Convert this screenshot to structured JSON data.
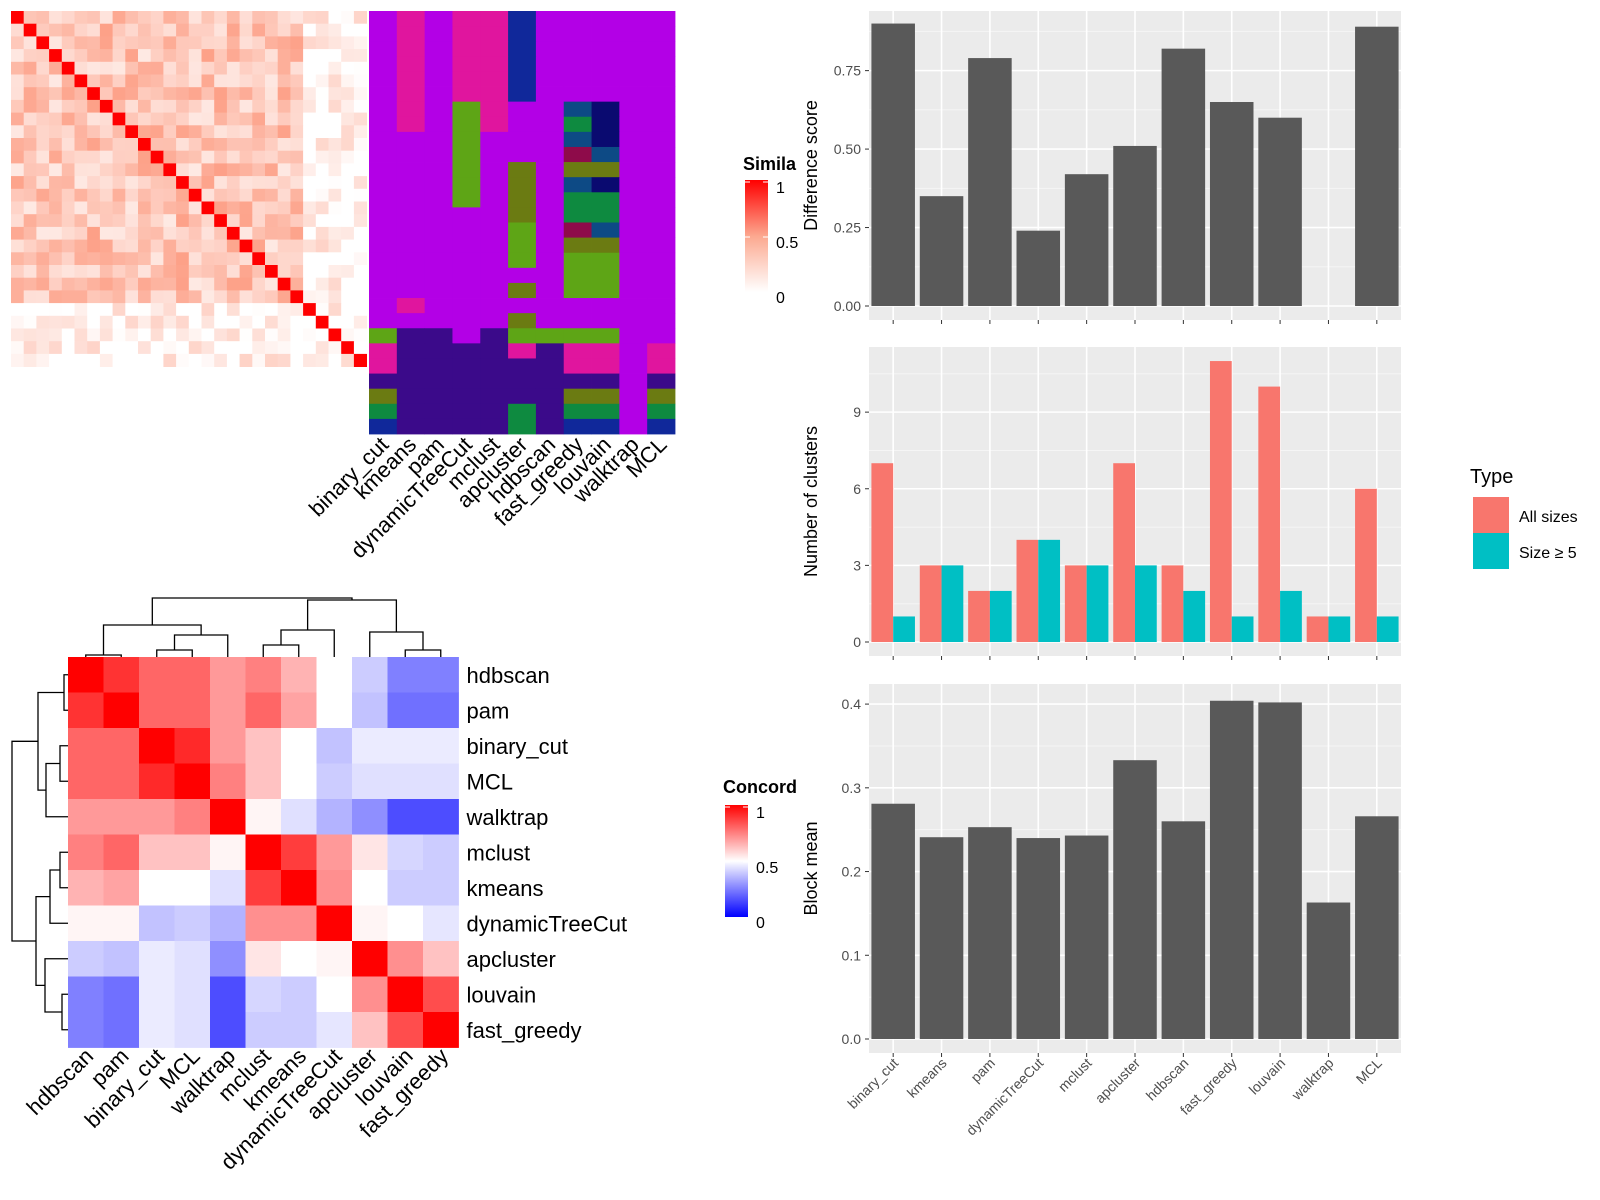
{
  "methods": [
    "binary_cut",
    "kmeans",
    "pam",
    "dynamicTreeCut",
    "mclust",
    "apcluster",
    "hdbscan",
    "fast_greedy",
    "louvain",
    "walktrap",
    "MCL"
  ],
  "similarity_legend": {
    "title": "Simila",
    "ticks": [
      "1",
      "0.5",
      "0"
    ]
  },
  "concordance_legend": {
    "title": "Concord",
    "ticks": [
      "1",
      "0.5",
      "0"
    ]
  },
  "concordance_order": [
    "hdbscan",
    "pam",
    "binary_cut",
    "MCL",
    "walktrap",
    "mclust",
    "kmeans",
    "dynamicTreeCut",
    "apcluster",
    "louvain",
    "fast_greedy"
  ],
  "type_legend": {
    "title": "Type",
    "items": [
      {
        "label": "All sizes",
        "color": "#F8766D"
      },
      {
        "label": "Size ≥ 5",
        "color": "#00BFC4"
      }
    ]
  },
  "colors": {
    "panel_bg": "#EBEBEB",
    "bar": "#595959",
    "red": "#FF0000",
    "blue": "#0000FF",
    "purple": "#B300E6",
    "magenta": "#E0159E",
    "dark_indigo": "#3B0A8A"
  },
  "chart_data": [
    {
      "type": "bar",
      "title": "",
      "xlabel": "",
      "ylabel": "Difference score",
      "categories": [
        "binary_cut",
        "kmeans",
        "pam",
        "dynamicTreeCut",
        "mclust",
        "apcluster",
        "hdbscan",
        "fast_greedy",
        "louvain",
        "walktrap",
        "MCL"
      ],
      "values": [
        0.9,
        0.35,
        0.79,
        0.24,
        0.42,
        0.51,
        0.82,
        0.65,
        0.6,
        0.0,
        0.89
      ],
      "ylim": [
        0,
        0.94
      ],
      "yticks": [
        "0.00",
        "0.25",
        "0.50",
        "0.75"
      ]
    },
    {
      "type": "bar",
      "title": "",
      "xlabel": "",
      "ylabel": "Number of clusters",
      "categories": [
        "binary_cut",
        "kmeans",
        "pam",
        "dynamicTreeCut",
        "mclust",
        "apcluster",
        "hdbscan",
        "fast_greedy",
        "louvain",
        "walktrap",
        "MCL"
      ],
      "series": [
        {
          "name": "All sizes",
          "values": [
            7,
            3,
            2,
            4,
            3,
            7,
            3,
            11,
            10,
            1,
            6
          ]
        },
        {
          "name": "Size ≥ 5",
          "values": [
            1,
            3,
            2,
            4,
            3,
            3,
            2,
            1,
            2,
            1,
            1
          ]
        }
      ],
      "ylim": [
        0,
        11.55
      ],
      "yticks": [
        "0",
        "3",
        "6",
        "9"
      ],
      "legend": "right"
    },
    {
      "type": "bar",
      "title": "",
      "xlabel": "",
      "ylabel": "Block mean",
      "categories": [
        "binary_cut",
        "kmeans",
        "pam",
        "dynamicTreeCut",
        "mclust",
        "apcluster",
        "hdbscan",
        "fast_greedy",
        "louvain",
        "walktrap",
        "MCL"
      ],
      "values": [
        0.281,
        0.241,
        0.253,
        0.24,
        0.243,
        0.333,
        0.26,
        0.404,
        0.402,
        0.163,
        0.266
      ],
      "ylim": [
        0,
        0.424
      ],
      "yticks": [
        "0.0",
        "0.1",
        "0.2",
        "0.3",
        "0.4"
      ]
    },
    {
      "type": "heatmap",
      "title": "",
      "rows": [
        "hdbscan",
        "pam",
        "binary_cut",
        "MCL",
        "walktrap",
        "mclust",
        "kmeans",
        "dynamicTreeCut",
        "apcluster",
        "louvain",
        "fast_greedy"
      ],
      "columns": [
        "hdbscan",
        "pam",
        "binary_cut",
        "MCL",
        "walktrap",
        "mclust",
        "kmeans",
        "dynamicTreeCut",
        "apcluster",
        "louvain",
        "fast_greedy"
      ],
      "values": [
        [
          1.0,
          0.9,
          0.8,
          0.8,
          0.7,
          0.75,
          0.65,
          0.5,
          0.4,
          0.25,
          0.25
        ],
        [
          0.9,
          1.0,
          0.8,
          0.8,
          0.7,
          0.8,
          0.68,
          0.5,
          0.38,
          0.22,
          0.22
        ],
        [
          0.8,
          0.8,
          1.0,
          0.92,
          0.7,
          0.62,
          0.5,
          0.38,
          0.46,
          0.46,
          0.46
        ],
        [
          0.8,
          0.8,
          0.92,
          1.0,
          0.75,
          0.62,
          0.5,
          0.4,
          0.44,
          0.44,
          0.44
        ],
        [
          0.7,
          0.7,
          0.7,
          0.75,
          1.0,
          0.52,
          0.44,
          0.35,
          0.28,
          0.15,
          0.15
        ],
        [
          0.75,
          0.8,
          0.62,
          0.62,
          0.52,
          1.0,
          0.88,
          0.7,
          0.55,
          0.42,
          0.4
        ],
        [
          0.65,
          0.68,
          0.5,
          0.5,
          0.44,
          0.88,
          1.0,
          0.72,
          0.5,
          0.4,
          0.4
        ],
        [
          0.52,
          0.52,
          0.38,
          0.4,
          0.35,
          0.72,
          0.72,
          1.0,
          0.52,
          0.5,
          0.45
        ],
        [
          0.4,
          0.38,
          0.46,
          0.44,
          0.28,
          0.55,
          0.5,
          0.52,
          1.0,
          0.72,
          0.62
        ],
        [
          0.25,
          0.22,
          0.46,
          0.44,
          0.15,
          0.42,
          0.4,
          0.5,
          0.72,
          1.0,
          0.85
        ],
        [
          0.25,
          0.22,
          0.46,
          0.44,
          0.15,
          0.4,
          0.4,
          0.45,
          0.62,
          0.85,
          1.0
        ]
      ],
      "color_range": [
        0,
        1
      ]
    }
  ]
}
